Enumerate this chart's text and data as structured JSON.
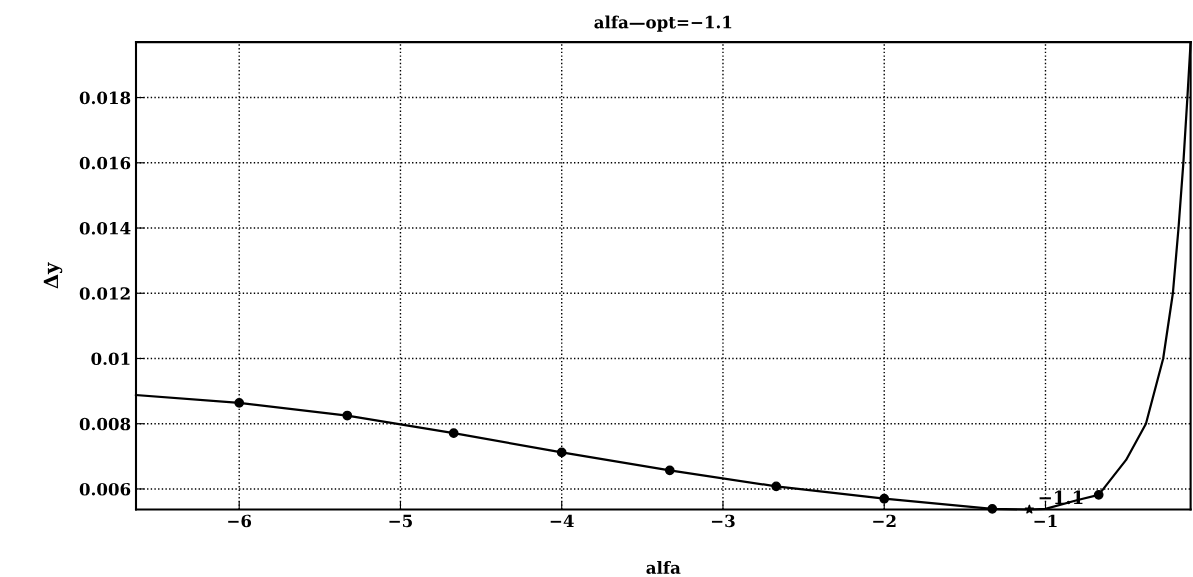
{
  "chart_data": {
    "type": "line",
    "title": "alfa—opt=−1.1",
    "xlabel": "alfa",
    "ylabel": "Δy",
    "series": [
      {
        "color": "#000000",
        "marker": "none",
        "line_style": "solid",
        "x": [
          -6.64,
          -6,
          -5.33,
          -4.67,
          -4,
          -3.33,
          -2.67,
          -2,
          -1.33,
          -1.1,
          -1.0,
          -0.8,
          -0.67,
          -0.5,
          -0.377,
          -0.27,
          -0.21,
          -0.175,
          -0.145,
          -0.12,
          -0.1
        ],
        "values": [
          0.00888,
          0.00864,
          0.00825,
          0.00771,
          0.00712,
          0.00657,
          0.00608,
          0.0057,
          0.00539,
          0.00537,
          0.00539,
          0.00566,
          0.00582,
          0.00689,
          0.008,
          0.01,
          0.012,
          0.014,
          0.016,
          0.018,
          0.0197
        ]
      },
      {
        "type": "scatter",
        "color": "#000000",
        "marker": "circle",
        "x": [
          -6,
          -5.33,
          -4.67,
          -4,
          -3.33,
          -2.67,
          -2,
          -1.33,
          -0.67
        ],
        "values": [
          0.00864,
          0.00825,
          0.00771,
          0.00712,
          0.00657,
          0.00608,
          0.0057,
          0.00539,
          0.00582
        ]
      },
      {
        "type": "scatter",
        "color": "#000000",
        "marker": "star",
        "x": [
          -1.1
        ],
        "values": [
          0.00537
        ]
      }
    ],
    "annotations": [
      {
        "text": "−1.1",
        "x": -1.1,
        "y": 0.00537
      }
    ],
    "xlim": [
      -6.64,
      -0.1
    ],
    "ylim": [
      0.00537,
      0.0197
    ],
    "xticks": [
      -6,
      -5,
      -4,
      -3,
      -2,
      -1
    ],
    "yticks": [
      0.006,
      0.008,
      0.01,
      0.012,
      0.014,
      0.016,
      0.018
    ],
    "grid": true
  }
}
